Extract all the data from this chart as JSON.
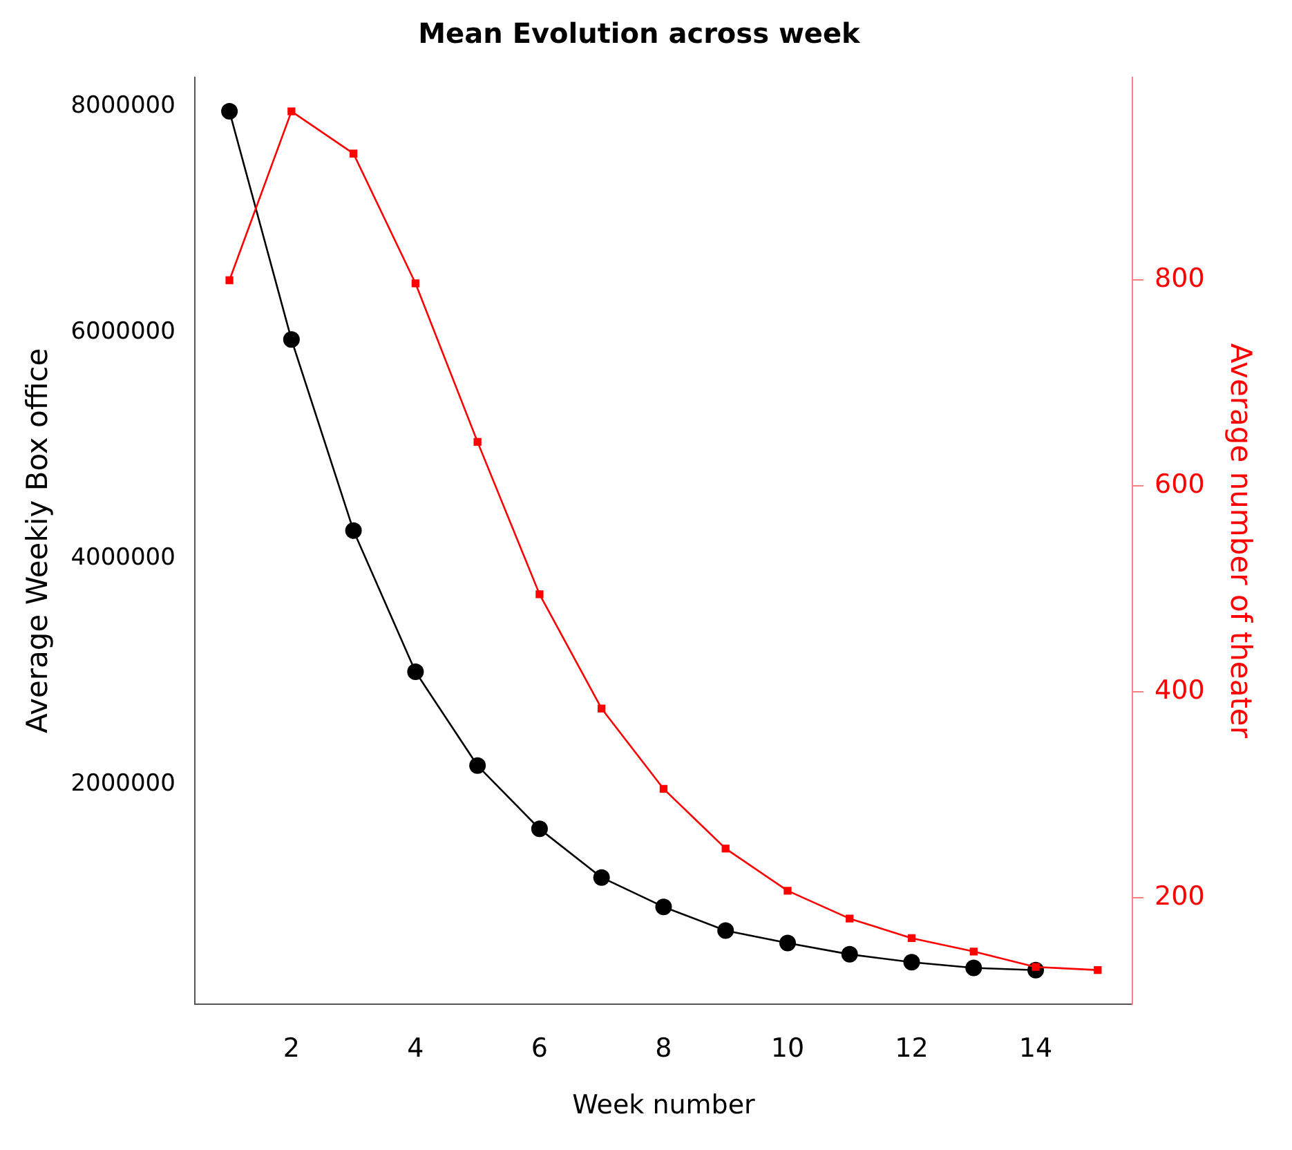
{
  "chart_data": {
    "type": "line",
    "title": "Mean Evolution across week",
    "xlabel": "Week number",
    "ylabel": "Average Weekiy Box office",
    "y2label": "Average number of theater",
    "x": [
      1,
      2,
      3,
      4,
      5,
      6,
      7,
      8,
      9,
      10,
      11,
      12,
      13,
      14
    ],
    "series": [
      {
        "color": "#000000",
        "marker": "circle",
        "values": [
          7960000,
          5940000,
          4250000,
          3000000,
          2170000,
          1610000,
          1180000,
          920000,
          710000,
          600000,
          500000,
          430000,
          380000,
          360000
        ]
      },
      {
        "color": "#ff0000",
        "marker": "square",
        "axis": "y2",
        "x": [
          1,
          2,
          3,
          4,
          5,
          6,
          7,
          8,
          9,
          10,
          11,
          12,
          13,
          14,
          15
        ],
        "values": [
          800,
          964,
          923,
          797,
          643,
          495,
          384,
          306,
          248,
          207,
          180,
          161,
          148,
          133,
          130
        ]
      }
    ],
    "xlim": [
      0.44,
      15.56
    ],
    "xticks": [
      2,
      4,
      6,
      8,
      10,
      12,
      14
    ],
    "ylim": [
      60000,
      8260000
    ],
    "yticks": [
      2000000,
      4000000,
      6000000,
      8000000
    ],
    "y2lim": [
      97,
      997
    ],
    "y2ticks": [
      200,
      400,
      600,
      800
    ],
    "grid": false,
    "legend": false,
    "line_style": "solid"
  }
}
